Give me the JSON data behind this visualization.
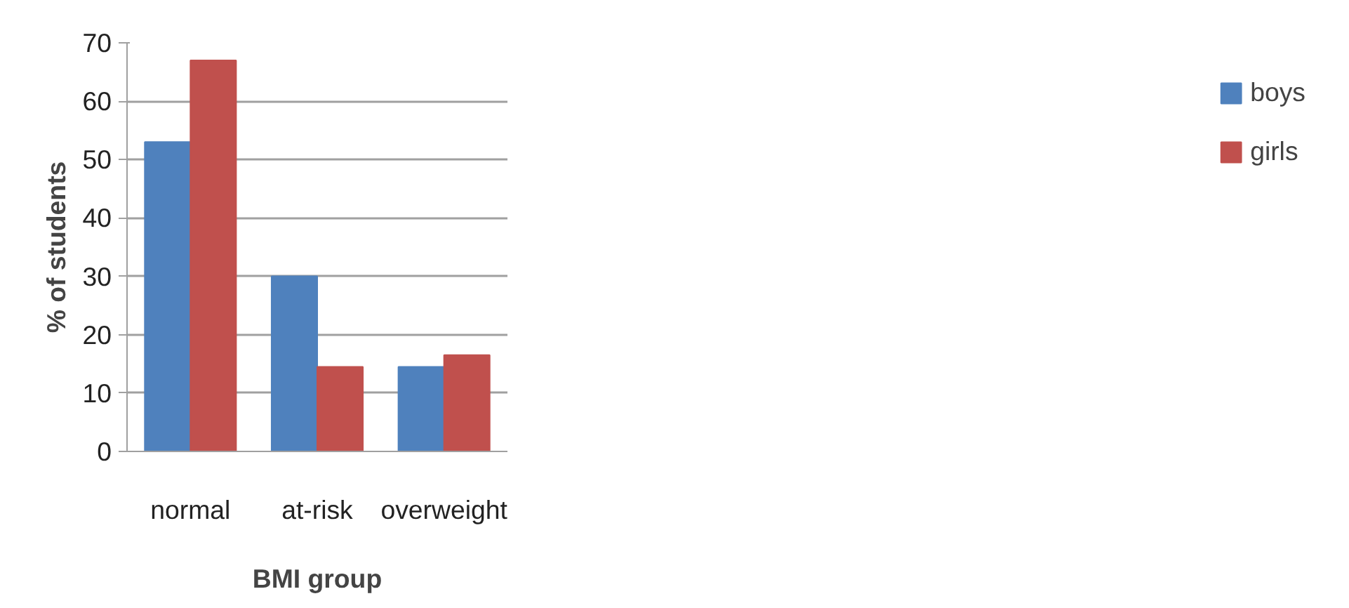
{
  "chart_data": {
    "type": "bar",
    "xlabel": "BMI group",
    "ylabel": "% of students",
    "categories": [
      "normal",
      "at-risk",
      "overweight"
    ],
    "series": [
      {
        "name": "boys",
        "color": "#4f81bd",
        "values": [
          53,
          30,
          14.5
        ]
      },
      {
        "name": "girls",
        "color": "#c0504d",
        "values": [
          67,
          14.5,
          16.5
        ]
      }
    ],
    "ylim": [
      0,
      70
    ],
    "yticks": [
      0,
      10,
      20,
      30,
      40,
      50,
      60,
      70
    ],
    "grid": "y",
    "legend": "right"
  }
}
